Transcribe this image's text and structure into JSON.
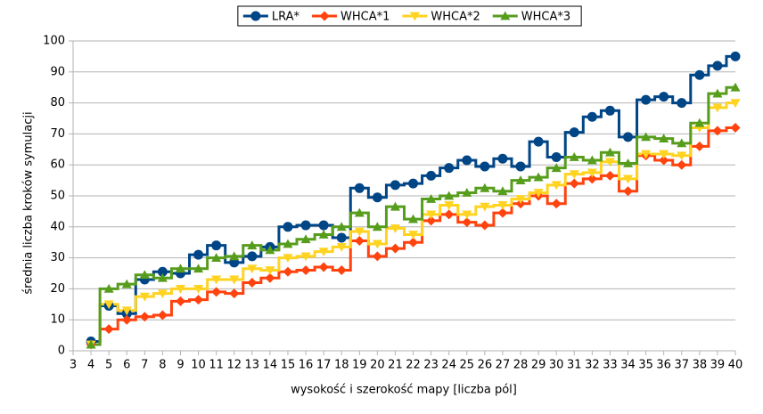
{
  "chart_data": {
    "type": "step-line",
    "step": "mid",
    "x_label": "wysokość i szerokość mapy [liczba pól]",
    "y_label": "średnia liczba kroków symulacji",
    "x": [
      4,
      5,
      6,
      7,
      8,
      9,
      10,
      11,
      12,
      13,
      14,
      15,
      16,
      17,
      18,
      19,
      20,
      21,
      22,
      23,
      24,
      25,
      26,
      27,
      28,
      29,
      30,
      31,
      32,
      33,
      34,
      35,
      36,
      37,
      38,
      39,
      40
    ],
    "xlim": [
      3,
      40
    ],
    "xticks": [
      3,
      4,
      5,
      6,
      7,
      8,
      9,
      10,
      11,
      12,
      13,
      14,
      15,
      16,
      17,
      18,
      19,
      20,
      21,
      22,
      23,
      24,
      25,
      26,
      27,
      28,
      29,
      30,
      31,
      32,
      33,
      34,
      35,
      36,
      37,
      38,
      39,
      40
    ],
    "ylim": [
      0,
      100
    ],
    "yticks": [
      0,
      10,
      20,
      30,
      40,
      50,
      60,
      70,
      80,
      90,
      100
    ],
    "grid": true,
    "legend": "top",
    "series": [
      {
        "name": "LRA*",
        "color": "#004586",
        "marker": "circle",
        "values": [
          3,
          14.5,
          12,
          23,
          25.5,
          25,
          31,
          34,
          28.5,
          30.5,
          33.5,
          40,
          40.5,
          40.5,
          36.5,
          52.5,
          49.5,
          53.5,
          54,
          56.5,
          59,
          61.5,
          59.5,
          62,
          59.5,
          67.5,
          62.5,
          70.5,
          75.5,
          77.5,
          69,
          81,
          82,
          80,
          89,
          92,
          95
        ]
      },
      {
        "name": "WHCA*1",
        "color": "#ff420e",
        "marker": "diamond",
        "values": [
          2,
          7,
          10,
          11,
          11.5,
          16,
          16.5,
          19,
          18.5,
          22,
          23.5,
          25.5,
          26,
          27,
          26,
          35.5,
          30.5,
          33,
          35,
          42,
          44,
          41.5,
          40.5,
          44.5,
          47.5,
          50,
          47.5,
          54,
          55.5,
          56.5,
          51.5,
          63,
          61.5,
          60,
          66,
          71,
          72
        ]
      },
      {
        "name": "WHCA*2",
        "color": "#ffd320",
        "marker": "triangle-down",
        "values": [
          2,
          15,
          13,
          17.5,
          18.5,
          20,
          20,
          23,
          23,
          26.5,
          26,
          30,
          30.5,
          32,
          33.5,
          38.5,
          34.5,
          39.5,
          37.5,
          44,
          47,
          44,
          46.5,
          47,
          49,
          51,
          53.5,
          57,
          57.5,
          61,
          55.5,
          63.5,
          63.5,
          63,
          72,
          78.5,
          80
        ]
      },
      {
        "name": "WHCA*3",
        "color": "#579d1c",
        "marker": "triangle-up",
        "values": [
          2,
          20,
          21.5,
          24.5,
          23.5,
          26.5,
          26.5,
          30,
          30.5,
          34,
          32.5,
          34.5,
          36,
          37.5,
          40,
          44.5,
          40,
          46.5,
          42.5,
          49,
          50,
          51,
          52.5,
          51.5,
          55,
          56,
          59,
          62.5,
          61.5,
          64,
          60.5,
          69,
          68.5,
          67,
          73.5,
          83,
          85
        ]
      }
    ]
  }
}
